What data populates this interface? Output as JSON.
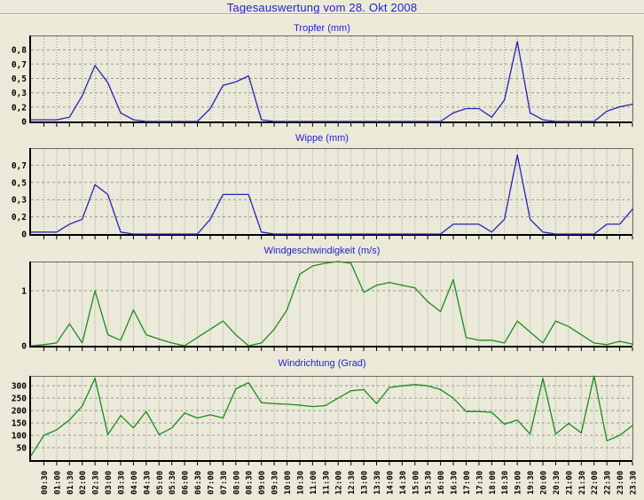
{
  "page": {
    "title": "Tagesauswertung vom 28. Okt 2008"
  },
  "colors": {
    "background": "#ece9d8",
    "plot_background": "#ebe9d9",
    "title_text": "#2222cc",
    "blue_line": "#2323bb",
    "green_line": "#1b8c1b",
    "grid": "#9a998c",
    "axis": "#000000",
    "frame_edge": "#6f6a58",
    "tick_label": "#000000"
  },
  "x_axis": {
    "first_point_time": "00:00",
    "interval_minutes": 30,
    "tick_labels": [
      "00:30",
      "01:00",
      "01:30",
      "02:00",
      "02:30",
      "03:00",
      "03:30",
      "04:00",
      "04:30",
      "05:00",
      "05:30",
      "06:00",
      "06:30",
      "07:00",
      "07:30",
      "08:00",
      "08:30",
      "09:00",
      "09:30",
      "10:00",
      "10:30",
      "11:00",
      "11:30",
      "12:00",
      "12:30",
      "13:00",
      "13:30",
      "14:00",
      "14:30",
      "15:00",
      "15:30",
      "16:00",
      "16:30",
      "17:00",
      "17:30",
      "18:00",
      "18:30",
      "19:00",
      "19:30",
      "20:00",
      "20:30",
      "21:00",
      "21:30",
      "22:00",
      "22:30",
      "23:00",
      "23:30"
    ]
  },
  "chart_data": [
    {
      "type": "line",
      "title": "Tropfer (mm)",
      "line_color_key": "blue_line",
      "ymax": 1.0,
      "y_ticks": [
        {
          "v": 0.833,
          "label": "0,8"
        },
        {
          "v": 0.667,
          "label": "0,7"
        },
        {
          "v": 0.5,
          "label": "0,5"
        },
        {
          "v": 0.333,
          "label": "0,3"
        },
        {
          "v": 0.167,
          "label": "0,2"
        },
        {
          "v": 0,
          "label": "0"
        }
      ],
      "values": [
        0.02,
        0.02,
        0.02,
        0.05,
        0.3,
        0.65,
        0.45,
        0.1,
        0.02,
        0,
        0,
        0,
        0,
        0,
        0.15,
        0.42,
        0.46,
        0.53,
        0.02,
        0,
        0,
        0,
        0,
        0,
        0,
        0,
        0,
        0,
        0,
        0,
        0,
        0,
        0,
        0.1,
        0.15,
        0.15,
        0.05,
        0.25,
        0.93,
        0.1,
        0.02,
        0,
        0,
        0,
        0,
        0.12,
        0.17,
        0.2
      ]
    },
    {
      "type": "line",
      "title": "Wippe (mm)",
      "line_color_key": "blue_line",
      "ymax": 0.87,
      "y_ticks": [
        {
          "v": 0.696,
          "label": "0,7"
        },
        {
          "v": 0.522,
          "label": "0,5"
        },
        {
          "v": 0.348,
          "label": "0,3"
        },
        {
          "v": 0.174,
          "label": "0,2"
        },
        {
          "v": 0,
          "label": "0"
        }
      ],
      "values": [
        0.02,
        0.02,
        0.02,
        0.1,
        0.15,
        0.5,
        0.4,
        0.02,
        0,
        0,
        0,
        0,
        0,
        0,
        0.15,
        0.4,
        0.4,
        0.4,
        0.02,
        0,
        0,
        0,
        0,
        0,
        0,
        0,
        0,
        0,
        0,
        0,
        0,
        0,
        0,
        0.1,
        0.1,
        0.1,
        0.02,
        0.15,
        0.8,
        0.15,
        0.02,
        0,
        0,
        0,
        0,
        0.1,
        0.1,
        0.25
      ]
    },
    {
      "type": "line",
      "title": "Windgeschwindigkeit (m/s)",
      "line_color_key": "green_line",
      "ymax": 1.53,
      "y_ticks": [
        {
          "v": 1,
          "label": "1"
        },
        {
          "v": 0,
          "label": "0"
        }
      ],
      "values": [
        0,
        0.02,
        0.05,
        0.4,
        0.05,
        1.0,
        0.2,
        0.1,
        0.65,
        0.2,
        0.12,
        0.05,
        0,
        0.15,
        0.3,
        0.45,
        0.2,
        0,
        0.05,
        0.3,
        0.65,
        1.3,
        1.45,
        1.5,
        1.55,
        1.5,
        0.97,
        1.1,
        1.15,
        1.1,
        1.05,
        0.8,
        0.62,
        1.2,
        0.15,
        0.1,
        0.1,
        0.05,
        0.45,
        0.25,
        0.05,
        0.45,
        0.35,
        0.2,
        0.05,
        0.02,
        0.08,
        0.03
      ]
    },
    {
      "type": "line",
      "title": "Windrichtung (Grad)",
      "line_color_key": "green_line",
      "ymax": 340,
      "y_ticks": [
        {
          "v": 300,
          "label": "300"
        },
        {
          "v": 250,
          "label": "250"
        },
        {
          "v": 200,
          "label": "200"
        },
        {
          "v": 150,
          "label": "150"
        },
        {
          "v": 100,
          "label": "100"
        },
        {
          "v": 50,
          "label": "50"
        }
      ],
      "values": [
        18,
        100,
        122,
        162,
        218,
        330,
        103,
        180,
        130,
        197,
        103,
        130,
        190,
        170,
        183,
        170,
        287,
        313,
        232,
        228,
        226,
        222,
        216,
        220,
        250,
        280,
        285,
        228,
        293,
        300,
        305,
        300,
        285,
        250,
        196,
        196,
        193,
        145,
        162,
        105,
        330,
        105,
        148,
        110,
        345,
        78,
        100,
        140
      ]
    }
  ]
}
